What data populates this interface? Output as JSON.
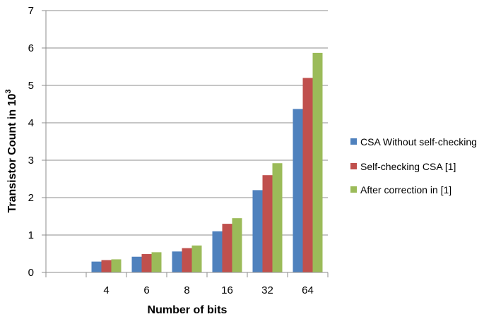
{
  "chart_data": {
    "type": "bar",
    "categories": [
      "",
      "4",
      "6",
      "8",
      "16",
      "32",
      "64"
    ],
    "series": [
      {
        "name": "CSA Without self-checking",
        "color": "#4F81BD",
        "values": [
          null,
          0.29,
          0.42,
          0.56,
          1.1,
          2.2,
          4.37
        ]
      },
      {
        "name": "Self-checking CSA [1]",
        "color": "#C0504D",
        "values": [
          null,
          0.33,
          0.49,
          0.65,
          1.3,
          2.6,
          5.2
        ]
      },
      {
        "name": "After correction in [1]",
        "color": "#9BBB59",
        "values": [
          null,
          0.35,
          0.54,
          0.72,
          1.45,
          2.92,
          5.87
        ]
      }
    ],
    "xlabel": "Number of bits",
    "ylabel": "Transistor Count in 10",
    "ylabel_superscript": "3",
    "ylim": [
      0,
      7
    ],
    "yticks": [
      "0",
      "1",
      "2",
      "3",
      "4",
      "5",
      "6",
      "7"
    ],
    "grid": true,
    "legend_position": "right"
  }
}
